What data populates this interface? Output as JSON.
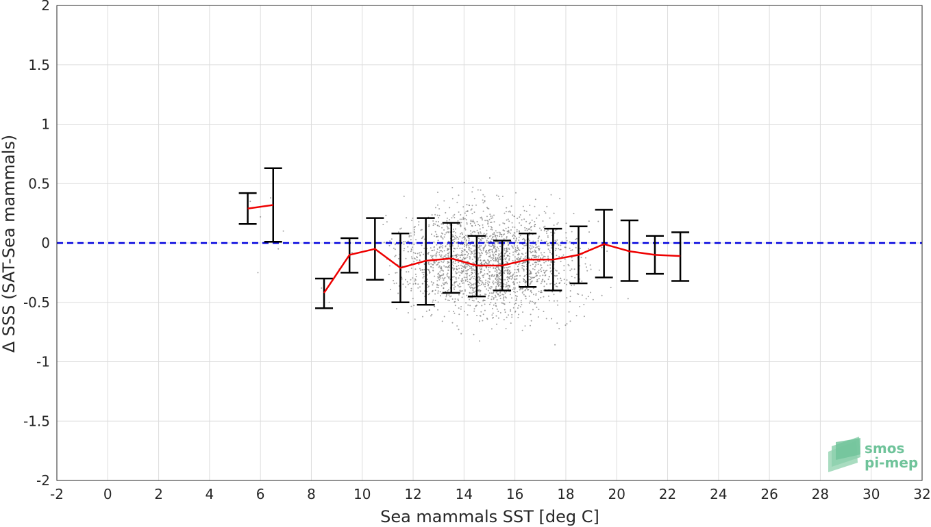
{
  "chart_data": {
    "type": "scatter",
    "xlabel": "Sea mammals SST [deg C]",
    "ylabel": "Δ SSS (SAT-Sea mammals)",
    "xlim": [
      -2,
      32
    ],
    "ylim": [
      -2,
      2
    ],
    "xticks": [
      -2,
      0,
      2,
      4,
      6,
      8,
      10,
      12,
      14,
      16,
      18,
      20,
      22,
      24,
      26,
      28,
      30,
      32
    ],
    "yticks": [
      -2,
      -1.5,
      -1,
      -0.5,
      0,
      0.5,
      1,
      1.5,
      2
    ],
    "grid": true,
    "reference_line": {
      "y": 0,
      "style": "dashed",
      "color": "#0000dd"
    },
    "scatter_color": "#808080",
    "binned_mean": {
      "color": "#ee0000",
      "x": [
        5.5,
        6.5,
        8.5,
        9.5,
        10.5,
        11.5,
        12.5,
        13.5,
        14.5,
        15.5,
        16.5,
        17.5,
        18.5,
        19.5,
        20.5,
        21.5,
        22.5
      ],
      "mean": [
        0.29,
        0.32,
        -0.42,
        -0.1,
        -0.05,
        -0.21,
        -0.15,
        -0.13,
        -0.19,
        -0.19,
        -0.14,
        -0.14,
        -0.1,
        -0.01,
        -0.07,
        -0.1,
        -0.11
      ],
      "lower": [
        0.16,
        0.01,
        -0.55,
        -0.25,
        -0.31,
        -0.5,
        -0.52,
        -0.42,
        -0.45,
        -0.4,
        -0.37,
        -0.4,
        -0.34,
        -0.29,
        -0.32,
        -0.26,
        -0.32
      ],
      "upper": [
        0.42,
        0.63,
        -0.3,
        0.04,
        0.21,
        0.08,
        0.21,
        0.17,
        0.06,
        0.02,
        0.08,
        0.12,
        0.14,
        0.28,
        0.19,
        0.06,
        0.09
      ]
    },
    "scatter_clusters": [
      {
        "x_center": 15.0,
        "x_spread": 3.8,
        "y_center": -0.16,
        "y_spread": 0.22,
        "count": 2200
      }
    ]
  },
  "logo": {
    "line1": "smos",
    "line2": "pi-mep",
    "color": "#6fc39a"
  }
}
